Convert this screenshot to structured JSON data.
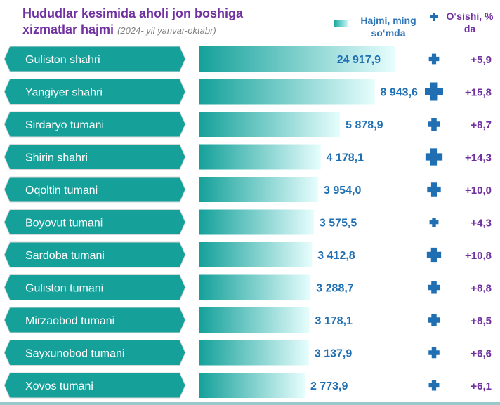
{
  "title": "Hudud­lar kesimida aholi jon boshiga",
  "title_line1": "Hududlar kesimida aholi jon boshiga",
  "title_line2": "xizmatlar hajmi",
  "subtitle": "(2024- yil yanvar-oktabr)",
  "legend": {
    "volume": "Hajmi, ming so‘mda",
    "growth": "O‘sishi, % da"
  },
  "colors": {
    "label_fill": "#15a19a",
    "bar_start": "#15a19a",
    "bar_end": "#e6fdfd",
    "value_text": "#1f6fb2",
    "growth_text": "#7030a0",
    "marker": "#1f6fb2",
    "title": "#7030a0"
  },
  "chart_data": {
    "type": "bar",
    "categories": [
      "Guliston shahri",
      "Yangiyer shahri",
      "Sirdaryo tumani",
      "Shirin shahri",
      "Oqoltin tumani",
      "Boyovut tumani",
      "Sardoba tumani",
      "Guliston tumani",
      "Mirzaobod tumani",
      "Sayxunobod tumani",
      "Xovos tumani"
    ],
    "series": [
      {
        "name": "Hajmi, ming so‘mda",
        "values": [
          24917.9,
          8943.6,
          5878.9,
          4178.1,
          3954.0,
          3575.5,
          3412.8,
          3288.7,
          3178.1,
          3137.9,
          2773.9
        ],
        "labels": [
          "24 917,9",
          "8 943,6",
          "5 878,9",
          "4 178,1",
          "3 954,0",
          "3 575,5",
          "3 412,8",
          "3 288,7",
          "3 178,1",
          "3 137,9",
          "2 773,9"
        ]
      },
      {
        "name": "O‘sishi, % da",
        "values": [
          5.9,
          15.8,
          8.7,
          14.3,
          10.0,
          4.3,
          10.8,
          8.8,
          8.5,
          6.6,
          6.1
        ],
        "labels": [
          "+5,9",
          "+15,8",
          "+8,7",
          "+14,3",
          "+10,0",
          "+4,3",
          "+10,8",
          "+8,8",
          "+8,5",
          "+6,6",
          "+6,1"
        ]
      }
    ],
    "orientation": "horizontal",
    "legend_position": "top-right",
    "grid": false
  }
}
